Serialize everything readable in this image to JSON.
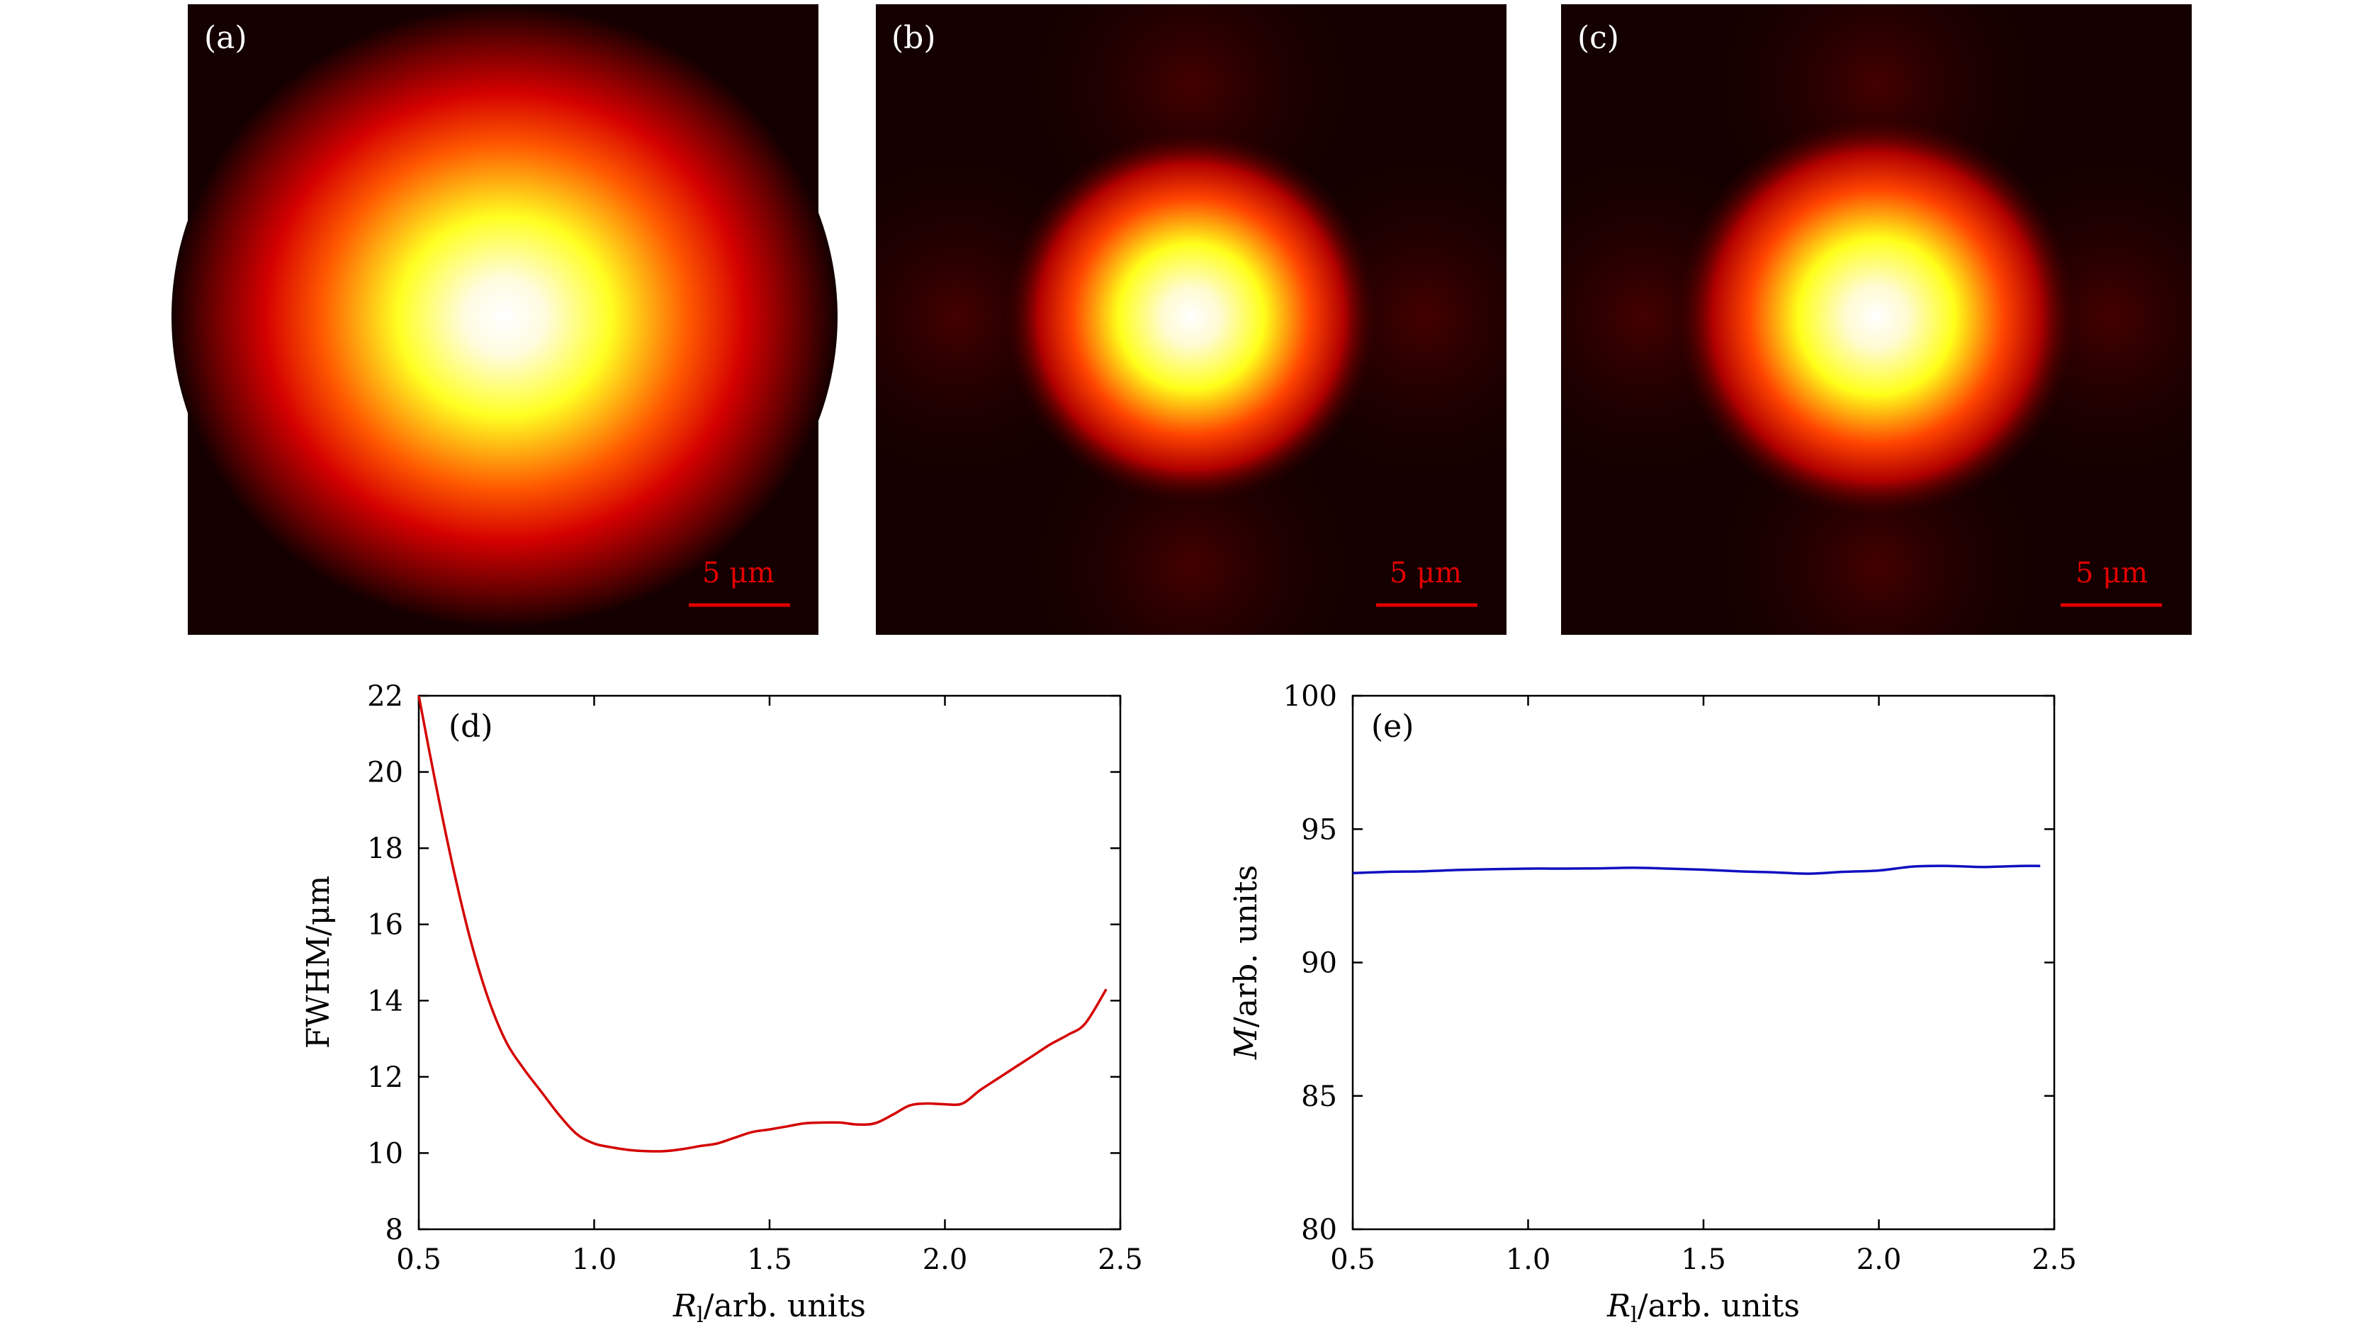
{
  "colors": {
    "scale_bar": "#e00000",
    "curve_d": "#d40000",
    "curve_e": "#1010c0",
    "axis": "#000000",
    "panel_tag": "#ffffff"
  },
  "beam_panels": [
    {
      "id": "a",
      "label": "(a)",
      "scale_text": "5 μm",
      "spot": "broad"
    },
    {
      "id": "b",
      "label": "(b)",
      "scale_text": "5 μm",
      "spot": "narrow"
    },
    {
      "id": "c",
      "label": "(c)",
      "scale_text": "5 μm",
      "spot": "narrow"
    }
  ],
  "chart_data": [
    {
      "type": "line",
      "panel_label": "(d)",
      "xlabel_var": "R",
      "xlabel_sub": "l",
      "xlabel_rest": "/arb. units",
      "ylabel": "FWHM/μm",
      "xlim": [
        0.5,
        2.5
      ],
      "ylim": [
        8,
        22
      ],
      "xticks": [
        0.5,
        1.0,
        1.5,
        2.0,
        2.5
      ],
      "xtick_labels": [
        "0.5",
        "1.0",
        "1.5",
        "2.0",
        "2.5"
      ],
      "yticks": [
        8,
        10,
        12,
        14,
        16,
        18,
        20,
        22
      ],
      "ytick_labels": [
        "8",
        "10",
        "12",
        "14",
        "16",
        "18",
        "20",
        "22"
      ],
      "series": [
        {
          "name": "FWHM",
          "x": [
            0.5,
            0.55,
            0.6,
            0.65,
            0.7,
            0.75,
            0.8,
            0.85,
            0.9,
            0.95,
            1.0,
            1.05,
            1.1,
            1.15,
            1.2,
            1.25,
            1.3,
            1.35,
            1.4,
            1.45,
            1.5,
            1.55,
            1.6,
            1.65,
            1.7,
            1.75,
            1.8,
            1.85,
            1.9,
            1.95,
            2.0,
            2.05,
            2.1,
            2.15,
            2.2,
            2.25,
            2.3,
            2.35,
            2.4,
            2.46
          ],
          "y": [
            22.0,
            19.6,
            17.4,
            15.5,
            14.0,
            12.9,
            12.2,
            11.6,
            11.0,
            10.5,
            10.25,
            10.15,
            10.08,
            10.05,
            10.05,
            10.1,
            10.18,
            10.25,
            10.4,
            10.55,
            10.62,
            10.7,
            10.78,
            10.8,
            10.8,
            10.75,
            10.78,
            11.0,
            11.25,
            11.3,
            11.28,
            11.3,
            11.65,
            11.95,
            12.25,
            12.55,
            12.85,
            13.1,
            13.4,
            14.3
          ]
        }
      ]
    },
    {
      "type": "line",
      "panel_label": "(e)",
      "xlabel_var": "R",
      "xlabel_sub": "l",
      "xlabel_rest": "/arb. units",
      "ylabel_var": "M",
      "ylabel_rest": "/arb. units",
      "xlim": [
        0.5,
        2.5
      ],
      "ylim": [
        80,
        100
      ],
      "xticks": [
        0.5,
        1.0,
        1.5,
        2.0,
        2.5
      ],
      "xtick_labels": [
        "0.5",
        "1.0",
        "1.5",
        "2.0",
        "2.5"
      ],
      "yticks": [
        80,
        85,
        90,
        95,
        100
      ],
      "ytick_labels": [
        "80",
        "85",
        "90",
        "95",
        "100"
      ],
      "series": [
        {
          "name": "M",
          "x": [
            0.5,
            0.6,
            0.7,
            0.8,
            0.9,
            1.0,
            1.1,
            1.2,
            1.3,
            1.4,
            1.5,
            1.6,
            1.7,
            1.8,
            1.9,
            2.0,
            2.1,
            2.2,
            2.3,
            2.4,
            2.46
          ],
          "y": [
            93.35,
            93.4,
            93.42,
            93.47,
            93.5,
            93.52,
            93.52,
            93.53,
            93.55,
            93.52,
            93.48,
            93.42,
            93.38,
            93.33,
            93.4,
            93.45,
            93.6,
            93.62,
            93.58,
            93.62,
            93.62
          ]
        }
      ]
    }
  ]
}
